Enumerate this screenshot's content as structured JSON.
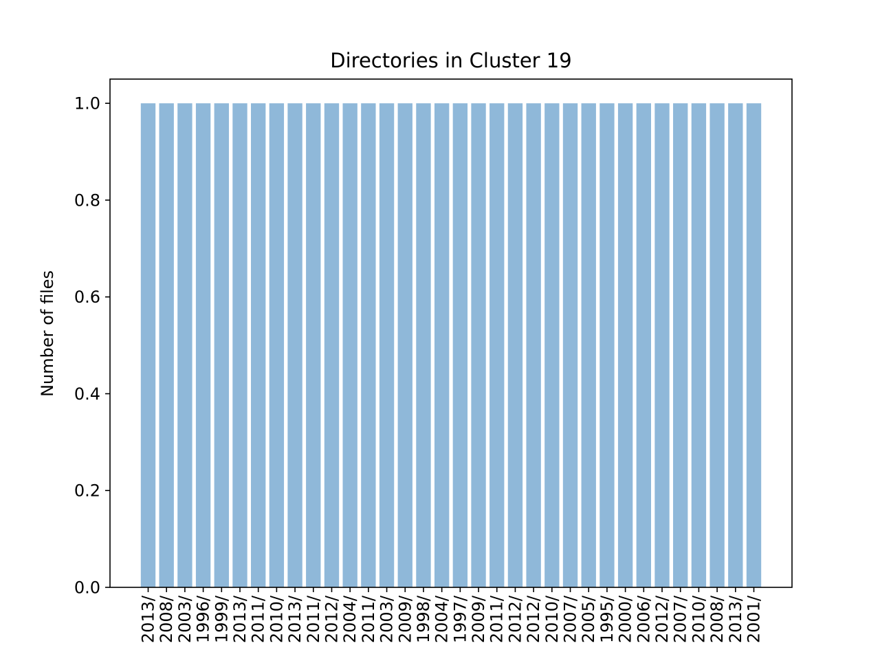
{
  "chart_data": {
    "type": "bar",
    "title": "Directories in Cluster 19",
    "xlabel": "",
    "ylabel": "Number of files",
    "ylim": [
      0,
      1.05
    ],
    "yticks": [
      0.0,
      0.2,
      0.4,
      0.6,
      0.8,
      1.0
    ],
    "ytick_labels": [
      "0.0",
      "0.2",
      "0.4",
      "0.6",
      "0.8",
      "1.0"
    ],
    "categories": [
      "2013/",
      "2008/",
      "2003/",
      "1996/",
      "1999/",
      "2013/",
      "2011/",
      "2010/",
      "2013/",
      "2011/",
      "2012/",
      "2004/",
      "2011/",
      "2003/",
      "2009/",
      "1998/",
      "2004/",
      "1997/",
      "2009/",
      "2011/",
      "2012/",
      "2012/",
      "2010/",
      "2007/",
      "2005/",
      "1995/",
      "2000/",
      "2006/",
      "2012/",
      "2007/",
      "2010/",
      "2008/",
      "2013/",
      "2001/"
    ],
    "values": [
      1,
      1,
      1,
      1,
      1,
      1,
      1,
      1,
      1,
      1,
      1,
      1,
      1,
      1,
      1,
      1,
      1,
      1,
      1,
      1,
      1,
      1,
      1,
      1,
      1,
      1,
      1,
      1,
      1,
      1,
      1,
      1,
      1,
      1
    ],
    "bar_color": "#8fb8d9",
    "grid": false,
    "legend": "none"
  }
}
